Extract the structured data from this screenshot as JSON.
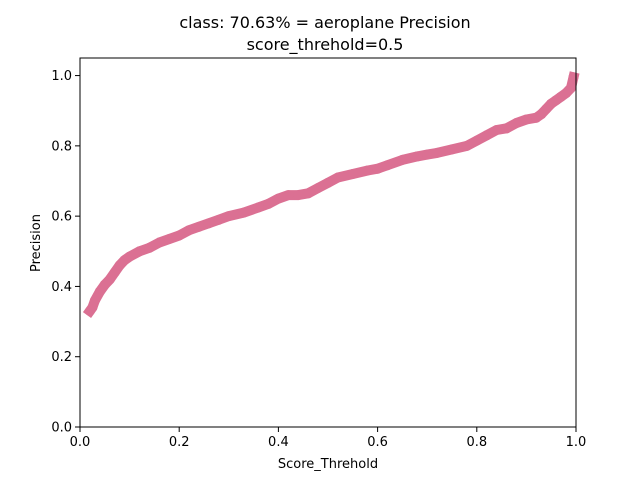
{
  "chart_data": {
    "type": "line",
    "title_line1": "class: 70.63% = aeroplane Precision",
    "title_line2": "score_threhold=0.5",
    "xlabel": "Score_Threhold",
    "ylabel": "Precision",
    "xlim": [
      0.0,
      1.0
    ],
    "ylim": [
      0.0,
      1.05
    ],
    "xticks": [
      0.0,
      0.2,
      0.4,
      0.6,
      0.8,
      1.0
    ],
    "xtick_labels": [
      "0.0",
      "0.2",
      "0.4",
      "0.6",
      "0.8",
      "1.0"
    ],
    "yticks": [
      0.0,
      0.2,
      0.4,
      0.6,
      0.8,
      1.0
    ],
    "ytick_labels": [
      "0.0",
      "0.2",
      "0.4",
      "0.6",
      "0.8",
      "1.0"
    ],
    "grid": false,
    "series": [
      {
        "name": "Precision",
        "color": "#db7093",
        "x": [
          0.02,
          0.025,
          0.03,
          0.04,
          0.05,
          0.06,
          0.07,
          0.08,
          0.09,
          0.1,
          0.12,
          0.14,
          0.16,
          0.18,
          0.2,
          0.22,
          0.24,
          0.26,
          0.28,
          0.3,
          0.33,
          0.36,
          0.38,
          0.4,
          0.42,
          0.44,
          0.46,
          0.48,
          0.5,
          0.52,
          0.55,
          0.58,
          0.6,
          0.62,
          0.65,
          0.68,
          0.7,
          0.72,
          0.75,
          0.78,
          0.8,
          0.82,
          0.84,
          0.86,
          0.88,
          0.9,
          0.92,
          0.93,
          0.94,
          0.95,
          0.96,
          0.97,
          0.98,
          0.99,
          0.995
        ],
        "y": [
          0.33,
          0.34,
          0.36,
          0.385,
          0.405,
          0.42,
          0.44,
          0.46,
          0.475,
          0.485,
          0.5,
          0.51,
          0.525,
          0.535,
          0.545,
          0.56,
          0.57,
          0.58,
          0.59,
          0.6,
          0.61,
          0.625,
          0.635,
          0.65,
          0.66,
          0.66,
          0.665,
          0.68,
          0.695,
          0.71,
          0.72,
          0.73,
          0.735,
          0.745,
          0.76,
          0.77,
          0.775,
          0.78,
          0.79,
          0.8,
          0.815,
          0.83,
          0.845,
          0.85,
          0.865,
          0.875,
          0.88,
          0.89,
          0.905,
          0.92,
          0.93,
          0.94,
          0.95,
          0.965,
          0.995
        ]
      }
    ]
  }
}
